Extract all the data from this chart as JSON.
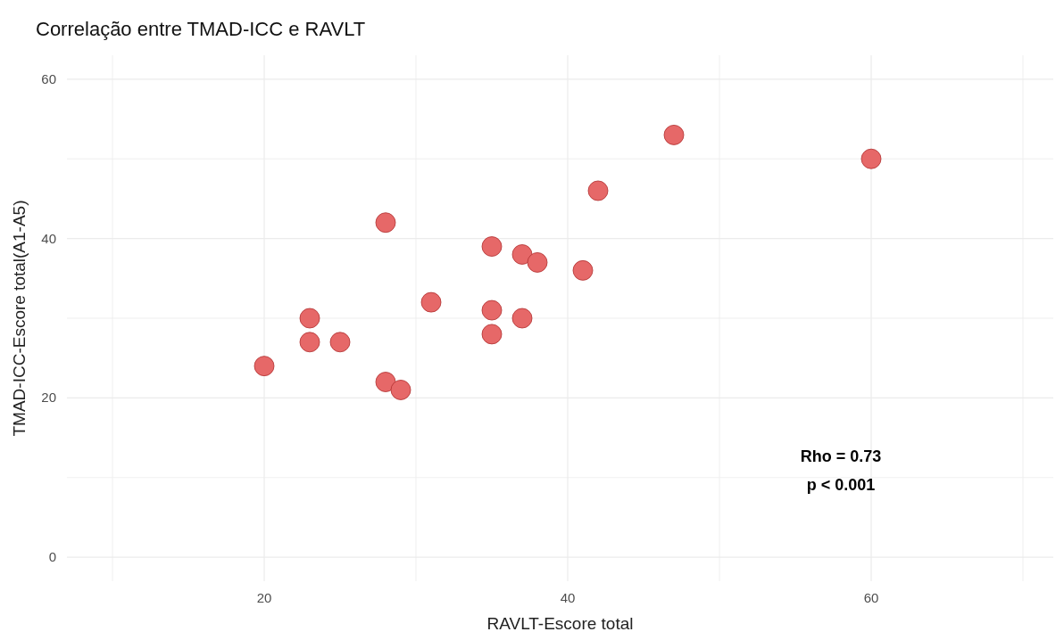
{
  "chart_data": {
    "type": "scatter",
    "title": "Correlação entre TMAD-ICC e RAVLT",
    "xlabel": "RAVLT-Escore total",
    "ylabel": "TMAD-ICC-Escore total(A1-A5)",
    "series": [
      {
        "color": "#e66868",
        "x": [
          20,
          23,
          23,
          25,
          28,
          28,
          29,
          31,
          35,
          35,
          35,
          37,
          37,
          38,
          41,
          42,
          47,
          60
        ],
        "values": [
          24,
          30,
          27,
          27,
          42,
          22,
          21,
          32,
          39,
          31,
          28,
          38,
          30,
          37,
          36,
          46,
          53,
          50
        ]
      }
    ],
    "xlim": [
      7,
      72
    ],
    "ylim": [
      -3,
      63
    ],
    "xticks": [
      {
        "value": 10,
        "label": null
      },
      20,
      {
        "value": 30,
        "label": null
      },
      40,
      {
        "value": 50,
        "label": null
      },
      60,
      {
        "value": 70,
        "label": null
      }
    ],
    "yticks": [
      0,
      {
        "value": 10,
        "label": null
      },
      20,
      {
        "value": 30,
        "label": null
      },
      40,
      {
        "value": 50,
        "label": null
      },
      60
    ],
    "annotations": [
      "Rho = 0.73",
      "p < 0.001"
    ],
    "grid": true,
    "marker": "circle"
  }
}
